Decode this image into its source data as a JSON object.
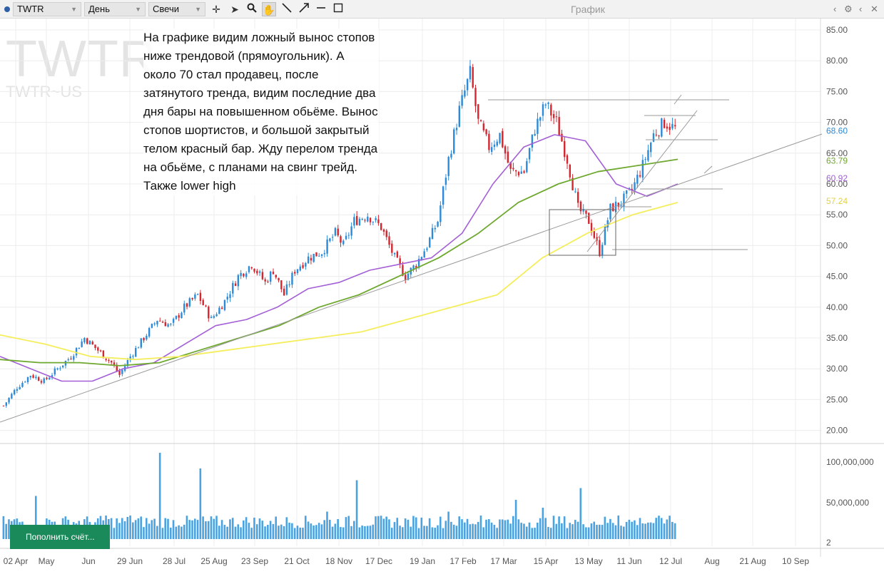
{
  "toolbar": {
    "symbol": "TWTR",
    "period": "День",
    "chart_type": "Свечи",
    "title": "График",
    "tools": [
      "cross-tool",
      "arrow-tool",
      "zoom-tool",
      "hand-tool",
      "line-tool",
      "ray-tool",
      "hline-tool",
      "rect-tool"
    ],
    "right_icons": [
      "‹",
      "⚙",
      "‹",
      "✕"
    ]
  },
  "watermark": {
    "symbol": "TWTR",
    "exchange": "TWTR~US"
  },
  "annotation": "На графике видим ложный вынос стопов ниже трендовой (прямоугольник). А около 70 стал продавец, после затянутого тренда, видим последние два дня бары на повышенном обьёме. Вынос стопов шортистов, и большой закрытый телом красный бар. Жду перелом тренда на обьёме, с планами на свинг трейд. Также lower high",
  "topup_button": "Пополнить счёт...",
  "colors": {
    "up": "#2d8ad6",
    "down": "#d4262f",
    "ma_fast": "#a35fd6",
    "ma_mid": "#6ea82e",
    "ma_slow": "#f4ee5c",
    "volume": "#4aa3e0"
  },
  "chart_data": {
    "type": "candlestick",
    "ylim": [
      20,
      86
    ],
    "yticks": [
      "85.00",
      "80.00",
      "75.00",
      "70.00",
      "65.00",
      "60.00",
      "55.00",
      "50.00",
      "45.00",
      "40.00",
      "35.00",
      "30.00",
      "25.00",
      "20.00"
    ],
    "xticks": [
      "02 Apr",
      "May",
      "Jun",
      "29 Jun",
      "28 Jul",
      "25 Aug",
      "23 Sep",
      "21 Oct",
      "18 Nov",
      "17 Dec",
      "19 Jan",
      "17 Feb",
      "17 Mar",
      "15 Apr",
      "13 May",
      "11 Jun",
      "12 Jul",
      "Aug",
      "21 Aug",
      "10 Sep"
    ],
    "price_labels": [
      {
        "value": "68.60",
        "color": "#2d8ad6"
      },
      {
        "value": "63.79",
        "color": "#6ea82e"
      },
      {
        "value": "60.92",
        "color": "#a35fd6"
      },
      {
        "value": "57.24",
        "color": "#e3d33a"
      }
    ],
    "close_path": [
      [
        0,
        24
      ],
      [
        5,
        27
      ],
      [
        10,
        29
      ],
      [
        15,
        28
      ],
      [
        20,
        30
      ],
      [
        25,
        32
      ],
      [
        30,
        35
      ],
      [
        35,
        33
      ],
      [
        40,
        31
      ],
      [
        43,
        29
      ],
      [
        47,
        32
      ],
      [
        52,
        35
      ],
      [
        57,
        38
      ],
      [
        62,
        37
      ],
      [
        67,
        40
      ],
      [
        72,
        42
      ],
      [
        77,
        38
      ],
      [
        82,
        41
      ],
      [
        87,
        45
      ],
      [
        92,
        47
      ],
      [
        97,
        44
      ],
      [
        100,
        46
      ],
      [
        104,
        42
      ],
      [
        108,
        46
      ],
      [
        113,
        48
      ],
      [
        118,
        49
      ],
      [
        123,
        52
      ],
      [
        126,
        50
      ],
      [
        130,
        54
      ],
      [
        135,
        55
      ],
      [
        140,
        53
      ],
      [
        145,
        48
      ],
      [
        149,
        45
      ],
      [
        153,
        47
      ],
      [
        157,
        50
      ],
      [
        161,
        54
      ],
      [
        165,
        64
      ],
      [
        169,
        72
      ],
      [
        173,
        78
      ],
      [
        176,
        70
      ],
      [
        180,
        66
      ],
      [
        184,
        68
      ],
      [
        188,
        62
      ],
      [
        193,
        62
      ],
      [
        197,
        69
      ],
      [
        201,
        73
      ],
      [
        205,
        70
      ],
      [
        209,
        64
      ],
      [
        213,
        56
      ],
      [
        217,
        54
      ],
      [
        221,
        49
      ],
      [
        225,
        56
      ],
      [
        229,
        57
      ],
      [
        233,
        59
      ],
      [
        237,
        63
      ],
      [
        241,
        68
      ],
      [
        245,
        70
      ],
      [
        249,
        69
      ]
    ],
    "series": [
      {
        "name": "MA fast",
        "values": [
          32,
          30,
          28,
          28,
          30,
          31,
          34,
          37,
          38,
          40,
          43,
          44,
          46,
          47,
          48,
          52,
          60,
          66,
          68,
          67,
          60,
          58,
          60
        ]
      },
      {
        "name": "MA mid",
        "values": [
          31.5,
          31,
          31,
          30.5,
          31,
          33,
          35,
          37,
          40,
          42,
          45,
          48,
          52,
          57,
          60,
          62,
          63,
          64
        ]
      },
      {
        "name": "MA slow",
        "values": [
          35.5,
          34,
          32,
          31.5,
          32,
          33,
          34,
          35,
          36,
          38,
          40,
          42,
          48,
          52,
          55,
          57
        ]
      }
    ],
    "volume_ticks": [
      "100,000,000",
      "50,000,000",
      "2"
    ]
  }
}
